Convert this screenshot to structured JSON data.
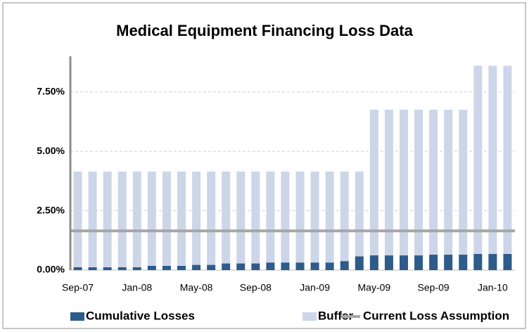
{
  "chart_data": {
    "type": "bar",
    "stacked": true,
    "title": "Medical Equipment  Financing Loss Data",
    "categories": [
      "Sep-07",
      null,
      null,
      null,
      "Jan-08",
      null,
      null,
      null,
      "May-08",
      null,
      null,
      null,
      "Sep-08",
      null,
      null,
      null,
      "Jan-09",
      null,
      null,
      null,
      "May-09",
      null,
      null,
      null,
      "Sep-09",
      null,
      null,
      null,
      "Jan-10",
      null
    ],
    "series": [
      {
        "name": "Cumulative Losses",
        "color": "#2e5b8a",
        "values": [
          0.12,
          0.12,
          0.12,
          0.12,
          0.12,
          0.18,
          0.18,
          0.18,
          0.22,
          0.22,
          0.28,
          0.28,
          0.28,
          0.32,
          0.32,
          0.32,
          0.32,
          0.32,
          0.38,
          0.58,
          0.62,
          0.62,
          0.62,
          0.62,
          0.65,
          0.65,
          0.65,
          0.68,
          0.68,
          0.68
        ]
      },
      {
        "name": "Buffer",
        "color": "#cdd6e8",
        "values": [
          4.03,
          4.03,
          4.03,
          4.03,
          4.03,
          3.97,
          3.97,
          3.97,
          3.93,
          3.93,
          3.87,
          3.87,
          3.87,
          3.83,
          3.83,
          3.83,
          3.83,
          3.83,
          3.77,
          3.57,
          6.13,
          6.13,
          6.13,
          6.13,
          6.1,
          6.1,
          6.1,
          7.92,
          7.92,
          7.92
        ]
      },
      {
        "name": "Current Loss Assumption",
        "color": "#a6a6a6",
        "type": "line",
        "values": [
          1.65,
          1.65,
          1.65,
          1.65,
          1.65,
          1.65,
          1.65,
          1.65,
          1.65,
          1.65,
          1.65,
          1.65,
          1.65,
          1.65,
          1.65,
          1.65,
          1.65,
          1.65,
          1.65,
          1.65,
          1.65,
          1.65,
          1.65,
          1.65,
          1.65,
          1.65,
          1.65,
          1.65,
          1.65,
          1.65
        ]
      }
    ],
    "ylim": [
      0,
      9
    ],
    "yticks": [
      {
        "value": 0,
        "label": "0.00%"
      },
      {
        "value": 2.5,
        "label": "2.50%"
      },
      {
        "value": 5,
        "label": "5.00%"
      },
      {
        "value": 7.5,
        "label": "7.50%"
      }
    ],
    "grid": true,
    "legend": "bottom"
  }
}
